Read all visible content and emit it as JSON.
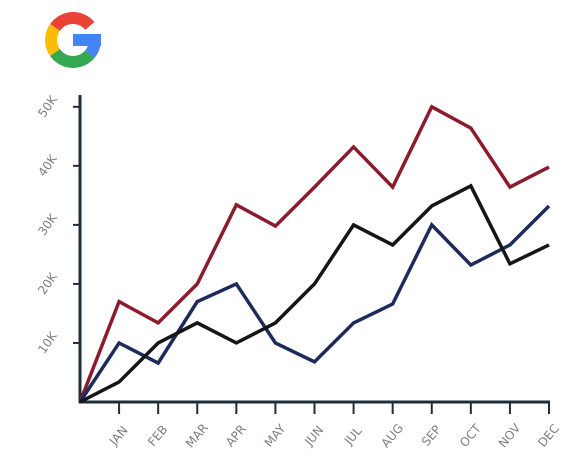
{
  "chart_data": {
    "type": "line",
    "categories": [
      null,
      "JAN",
      "FEB",
      "MAR",
      "APR",
      "MAY",
      "JUN",
      "JUL",
      "AUG",
      "SEP",
      "OCT",
      "NOV",
      "DEC"
    ],
    "series": [
      {
        "color": "#8b1c2e",
        "values": [
          0,
          17000,
          13400,
          20000,
          33400,
          29800,
          36400,
          43200,
          36400,
          50000,
          46400,
          36400,
          39800
        ]
      },
      {
        "color": "#1f2a5c",
        "values": [
          0,
          10000,
          6600,
          17000,
          20000,
          10000,
          6800,
          13400,
          16600,
          30000,
          23200,
          26600,
          33200
        ]
      },
      {
        "color": "#161616",
        "values": [
          0,
          3400,
          10000,
          13400,
          10000,
          13400,
          20000,
          30000,
          26600,
          33200,
          36600,
          23400,
          26600
        ]
      }
    ],
    "ylim": [
      0,
      52000
    ],
    "yticks": [
      {
        "value": 10000,
        "label": "10K"
      },
      {
        "value": 20000,
        "label": "20K"
      },
      {
        "value": 30000,
        "label": "30K"
      },
      {
        "value": 40000,
        "label": "40K"
      },
      {
        "value": 50000,
        "label": "50K"
      }
    ],
    "grid": false
  }
}
